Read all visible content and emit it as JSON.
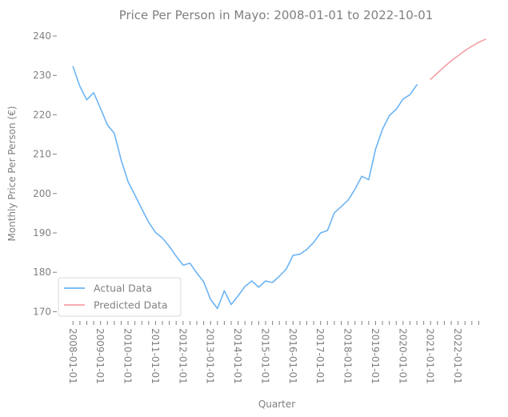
{
  "chart_data": {
    "type": "line",
    "title": "Price Per Person in Mayo: 2008-01-01 to 2022-10-01",
    "xlabel": "Quarter",
    "ylabel": "Monthly Price Per Person (€)",
    "ylim": [
      168,
      241
    ],
    "yticks": [
      170,
      180,
      190,
      200,
      210,
      220,
      230,
      240
    ],
    "x_tick_labels": [
      "2008-01-01",
      "2009-01-01",
      "2010-01-01",
      "2011-01-01",
      "2012-01-01",
      "2013-01-01",
      "2014-01-01",
      "2015-01-01",
      "2016-01-01",
      "2017-01-01",
      "2018-01-01",
      "2019-01-01",
      "2020-01-01",
      "2021-01-01",
      "2022-01-01"
    ],
    "quarters_count": 60,
    "grid": false,
    "legend": "lower-left",
    "series": [
      {
        "name": "Actual Data",
        "color": "#6cb4f5",
        "start_index": 0,
        "values": [
          232.2,
          227.2,
          223.8,
          225.6,
          221.6,
          217.4,
          215.3,
          208.5,
          203.0,
          199.6,
          196.1,
          192.7,
          190.1,
          188.7,
          186.6,
          184.1,
          181.8,
          182.3,
          179.8,
          177.6,
          173.1,
          170.8,
          175.3,
          171.8,
          174.0,
          176.4,
          177.8,
          176.2,
          177.8,
          177.4,
          179.0,
          180.8,
          184.3,
          184.6,
          185.8,
          187.6,
          190.0,
          190.6,
          195.1,
          196.7,
          198.3,
          201.1,
          204.4,
          203.5,
          211.3,
          216.3,
          219.8,
          221.4,
          224.0,
          225.1,
          227.6
        ]
      },
      {
        "name": "Predicted Data",
        "color": "#f4a0a6",
        "start_index": 52,
        "values": [
          229.0,
          230.6,
          232.2,
          233.7,
          235.0,
          236.3,
          237.4,
          238.4,
          239.2
        ]
      }
    ]
  }
}
